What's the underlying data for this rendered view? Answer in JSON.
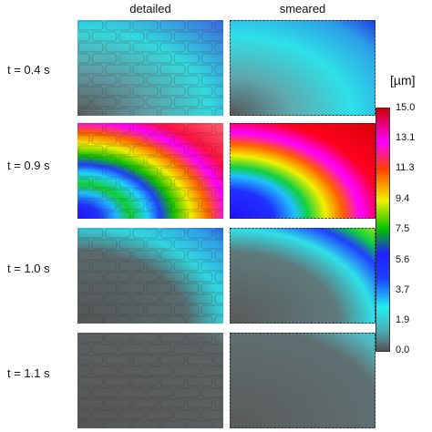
{
  "columns": {
    "detailed": "detailed",
    "smeared": "smeared"
  },
  "rows": [
    {
      "label": "t = 0.4 s",
      "time_s": 0.4
    },
    {
      "label": "t = 0.9 s",
      "time_s": 0.9
    },
    {
      "label": "t = 1.0 s",
      "time_s": 1.0
    },
    {
      "label": "t = 1.1 s",
      "time_s": 1.1
    }
  ],
  "colorbar": {
    "unit": "[µm]",
    "ticks": [
      "15.0",
      "13.1",
      "11.3",
      "9.4",
      "7.5",
      "5.6",
      "3.7",
      "1.9",
      "0.0"
    ],
    "min": 0.0,
    "max": 15.0,
    "colors": [
      "#505050",
      "#4fc1c6",
      "#23f0f0",
      "#1a1aff",
      "#00c000",
      "#f0f000",
      "#ff3000",
      "#ff00ff",
      "#cc0000"
    ]
  }
}
